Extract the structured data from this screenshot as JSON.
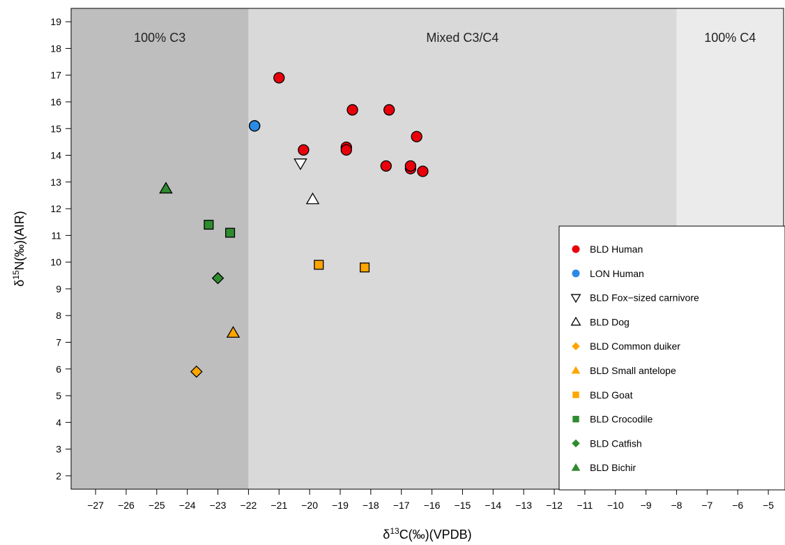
{
  "chart_data": {
    "type": "scatter",
    "xlabel": {
      "prefix": "δ",
      "sup": "13",
      "main": "C(‰)(VPDB)"
    },
    "ylabel": {
      "prefix": "δ",
      "sup": "15",
      "main": "N(‰)(AIR)"
    },
    "xlim": [
      -27.8,
      -4.5
    ],
    "ylim": [
      1.5,
      19.5
    ],
    "x_ticks": [
      -27,
      -26,
      -25,
      -24,
      -23,
      -22,
      -21,
      -20,
      -19,
      -18,
      -17,
      -16,
      -15,
      -14,
      -13,
      -12,
      -11,
      -10,
      -9,
      -8,
      -7,
      -6,
      -5
    ],
    "y_ticks": [
      2,
      3,
      4,
      5,
      6,
      7,
      8,
      9,
      10,
      11,
      12,
      13,
      14,
      15,
      16,
      17,
      18,
      19
    ],
    "regions": [
      {
        "label": "100% C3",
        "x0": -27.8,
        "x1": -22,
        "color": "#bebebe"
      },
      {
        "label": "Mixed C3/C4",
        "x0": -22,
        "x1": -8,
        "color": "#d9d9d9"
      },
      {
        "label": "100% C4",
        "x0": -8,
        "x1": -4.5,
        "color": "#ebebeb"
      }
    ],
    "series": [
      {
        "name": "BLD Human",
        "marker": "circle",
        "color": "#e8000b",
        "points": [
          [
            -21.0,
            16.9
          ],
          [
            -18.6,
            15.7
          ],
          [
            -17.4,
            15.7
          ],
          [
            -16.5,
            14.7
          ],
          [
            -21.8,
            15.1
          ],
          [
            -20.2,
            14.2
          ],
          [
            -18.8,
            14.3
          ],
          [
            -18.8,
            14.2
          ],
          [
            -17.5,
            13.6
          ],
          [
            -16.7,
            13.5
          ],
          [
            -16.7,
            13.6
          ],
          [
            -16.3,
            13.4
          ]
        ]
      },
      {
        "name": "LON Human",
        "marker": "circle",
        "color": "#2b8ae6",
        "points": [
          [
            -21.8,
            15.1
          ]
        ]
      },
      {
        "name": "BLD Fox−sized carnivore",
        "marker": "triangle-down",
        "color": "#ffffff",
        "points": [
          [
            -20.3,
            13.7
          ]
        ]
      },
      {
        "name": "BLD Dog",
        "marker": "triangle-up",
        "color": "#ffffff",
        "points": [
          [
            -19.9,
            12.35
          ]
        ]
      },
      {
        "name": "BLD Common duiker",
        "marker": "diamond",
        "color": "#ffa500",
        "points": [
          [
            -23.7,
            5.9
          ]
        ]
      },
      {
        "name": "BLD Small antelope",
        "marker": "triangle-up",
        "color": "#ffa500",
        "points": [
          [
            -22.5,
            7.35
          ]
        ]
      },
      {
        "name": "BLD Goat",
        "marker": "square",
        "color": "#ffa500",
        "points": [
          [
            -19.7,
            9.9
          ],
          [
            -18.2,
            9.8
          ]
        ]
      },
      {
        "name": "BLD Crocodile",
        "marker": "square",
        "color": "#2e8b2e",
        "points": [
          [
            -23.3,
            11.4
          ],
          [
            -22.6,
            11.1
          ]
        ]
      },
      {
        "name": "BLD Catfish",
        "marker": "diamond",
        "color": "#2e8b2e",
        "points": [
          [
            -23.0,
            9.4
          ]
        ]
      },
      {
        "name": "BLD Bichir",
        "marker": "triangle-up",
        "color": "#2e8b2e",
        "points": [
          [
            -24.7,
            12.75
          ]
        ]
      }
    ],
    "legend": {
      "position": "bottom-right"
    },
    "grid": false
  }
}
